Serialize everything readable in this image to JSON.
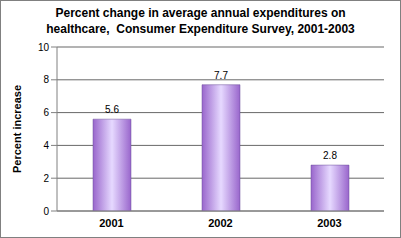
{
  "chart_data": {
    "type": "bar",
    "title": "Percent change in average annual expenditures on healthcare,  Consumer Expenditure Survey, 2001-2003",
    "y_label": "Percent increase",
    "categories": [
      "2001",
      "2002",
      "2003"
    ],
    "values": [
      5.6,
      7.7,
      2.8
    ],
    "color": "#9966cc",
    "ylim": [
      0,
      10
    ],
    "yticks": [
      0,
      2,
      4,
      6,
      8,
      10
    ],
    "grid": true,
    "data_labels": true
  }
}
